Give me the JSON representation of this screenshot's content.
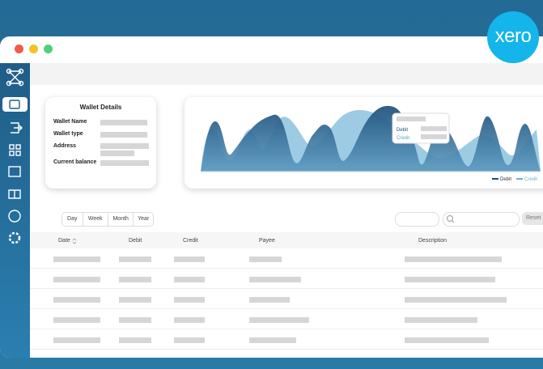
{
  "logo": "xero",
  "wallet": {
    "title": "Wallet Details",
    "fields": [
      "Wallet Name",
      "Wallet type",
      "Address",
      "Current balance"
    ]
  },
  "chart": {
    "tooltip": [
      "Debit",
      "Credit"
    ],
    "legend": [
      "Debit",
      "Credit"
    ]
  },
  "filters": [
    "Day",
    "Week",
    "Month",
    "Year"
  ],
  "reset": "Reset",
  "table": {
    "headers": [
      "Date",
      "Debit",
      "Credit",
      "Payee",
      "Description"
    ]
  }
}
